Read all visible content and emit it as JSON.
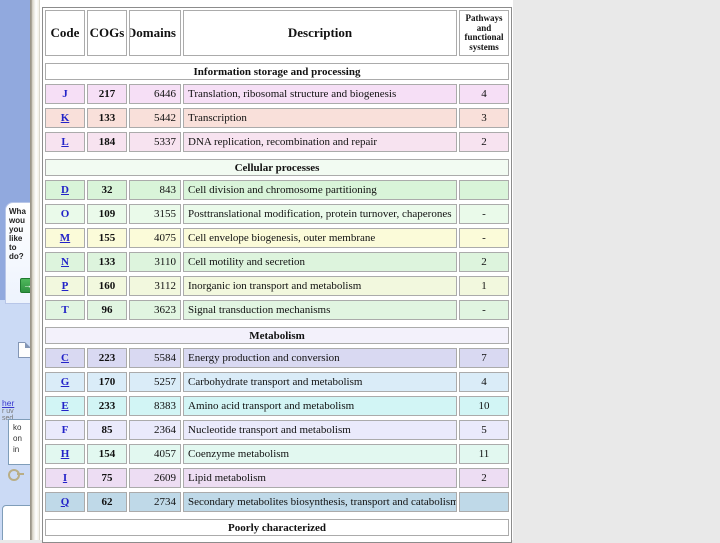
{
  "taskpane": {
    "question_lines": [
      "Wha",
      "wou",
      "you",
      "like",
      "to",
      "do?"
    ],
    "go_arrow": "→",
    "link_text": "her",
    "tiny_fragments": [
      "r uv",
      "sed"
    ],
    "box_lines": [
      "ko",
      "on",
      "in"
    ],
    "colors": {
      "pane_blue": "#91A9DE",
      "pane_light": "#CBDAF5",
      "go_green": "#2E9140",
      "link_blue": "#3838CE"
    }
  },
  "workspace": {
    "background": "#E9E9E9",
    "slide_background": "#FFFFFF"
  },
  "table": {
    "headers": [
      "Code",
      "COGs",
      "Domains",
      "Description",
      "Pathways and functional systems"
    ],
    "border_color": "#8C8C8C",
    "sections": [
      {
        "title": "Information storage and processing",
        "title_bg": "#FFFFFF",
        "rows": [
          {
            "code": "J",
            "underline": false,
            "cogs": "217",
            "domains": "6446",
            "description": "Translation, ribosomal structure and biogenesis",
            "pathways": "4",
            "color": "#F6DFF6"
          },
          {
            "code": "K",
            "underline": true,
            "cogs": "133",
            "domains": "5442",
            "description": "Transcription",
            "pathways": "3",
            "color": "#F9E0DA"
          },
          {
            "code": "L",
            "underline": true,
            "cogs": "184",
            "domains": "5337",
            "description": "DNA replication, recombination and repair",
            "pathways": "2",
            "color": "#F7E3F0"
          }
        ]
      },
      {
        "title": "Cellular processes",
        "title_bg": "#F2FBF2",
        "rows": [
          {
            "code": "D",
            "underline": true,
            "cogs": "32",
            "domains": "843",
            "description": "Cell division and chromosome partitioning",
            "pathways": "",
            "color": "#D9F4D9"
          },
          {
            "code": "O",
            "underline": false,
            "cogs": "109",
            "domains": "3155",
            "description": "Posttranslational modification, protein turnover, chaperones",
            "pathways": "-",
            "color": "#EAFAEA"
          },
          {
            "code": "M",
            "underline": true,
            "cogs": "155",
            "domains": "4075",
            "description": "Cell envelope biogenesis, outer membrane",
            "pathways": "-",
            "color": "#FBFBD9"
          },
          {
            "code": "N",
            "underline": true,
            "cogs": "133",
            "domains": "3110",
            "description": "Cell motility and secretion",
            "pathways": "2",
            "color": "#DDF4DD"
          },
          {
            "code": "P",
            "underline": true,
            "cogs": "160",
            "domains": "3112",
            "description": "Inorganic ion transport and metabolism",
            "pathways": "1",
            "color": "#F2F8DE"
          },
          {
            "code": "T",
            "underline": false,
            "cogs": "96",
            "domains": "3623",
            "description": "Signal transduction mechanisms",
            "pathways": "-",
            "color": "#E1F5E1"
          }
        ]
      },
      {
        "title": "Metabolism",
        "title_bg": "#F3F1FB",
        "rows": [
          {
            "code": "C",
            "underline": true,
            "cogs": "223",
            "domains": "5584",
            "description": "Energy production and conversion",
            "pathways": "7",
            "color": "#D9D9F2"
          },
          {
            "code": "G",
            "underline": true,
            "cogs": "170",
            "domains": "5257",
            "description": "Carbohydrate transport and metabolism",
            "pathways": "4",
            "color": "#DAECF8"
          },
          {
            "code": "E",
            "underline": true,
            "cogs": "233",
            "domains": "8383",
            "description": "Amino acid transport and metabolism",
            "pathways": "10",
            "color": "#D2F5F5"
          },
          {
            "code": "F",
            "underline": false,
            "cogs": "85",
            "domains": "2364",
            "description": "Nucleotide transport and metabolism",
            "pathways": "5",
            "color": "#EAEAFB"
          },
          {
            "code": "H",
            "underline": true,
            "cogs": "154",
            "domains": "4057",
            "description": "Coenzyme metabolism",
            "pathways": "11",
            "color": "#E2F8F0"
          },
          {
            "code": "I",
            "underline": true,
            "cogs": "75",
            "domains": "2609",
            "description": "Lipid metabolism",
            "pathways": "2",
            "color": "#EDDDF3"
          },
          {
            "code": "Q",
            "underline": true,
            "cogs": "62",
            "domains": "2734",
            "description": "Secondary metabolites biosynthesis, transport and catabolism",
            "pathways": "",
            "color": "#BFD9E8"
          }
        ]
      },
      {
        "title": "Poorly characterized",
        "title_bg": "#FFFFFF",
        "rows": []
      }
    ]
  }
}
